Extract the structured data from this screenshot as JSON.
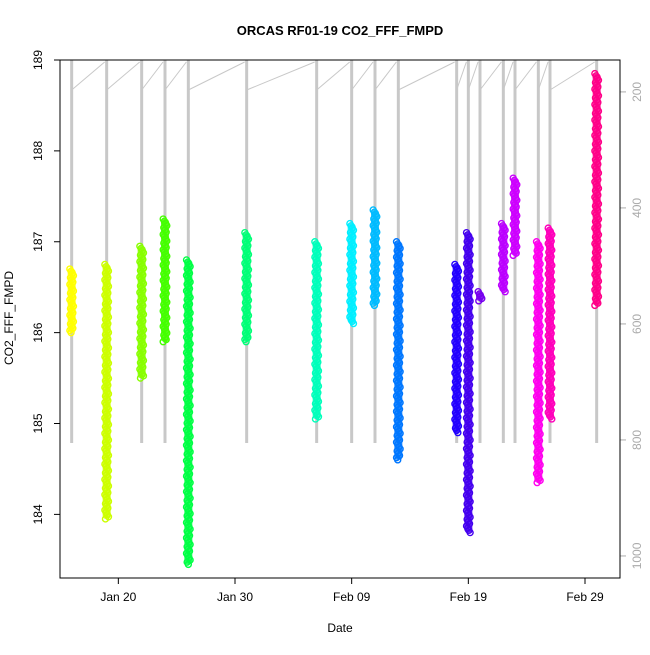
{
  "chart_data": {
    "type": "scatter",
    "title": "ORCAS RF01-19 CO2_FFF_FMPD",
    "xlabel": "Date",
    "ylabel": "CO2_FFF_FMPD",
    "xlim": [
      "2016-01-15",
      "2016-03-03"
    ],
    "ylim": [
      183.3,
      189.0
    ],
    "x_ticks": [
      {
        "date": "2016-01-20",
        "label": "Jan 20"
      },
      {
        "date": "2016-01-30",
        "label": "Jan 30"
      },
      {
        "date": "2016-02-09",
        "label": "Feb 09"
      },
      {
        "date": "2016-02-19",
        "label": "Feb 19"
      },
      {
        "date": "2016-02-29",
        "label": "Feb 29"
      }
    ],
    "y_ticks": [
      184,
      185,
      186,
      187,
      188,
      189
    ],
    "y2_ticks": [
      200,
      400,
      600,
      800,
      1000
    ],
    "y2lim": [
      1038,
      145
    ],
    "pressure_trace_color": "#c8c8c8",
    "series": [
      {
        "date": "2016-01-16",
        "color": "#ffff00",
        "y_min": 186.0,
        "y_max": 186.7
      },
      {
        "date": "2016-01-19",
        "color": "#ccff00",
        "y_min": 183.95,
        "y_max": 186.75
      },
      {
        "date": "2016-01-22",
        "color": "#88ff00",
        "y_min": 185.5,
        "y_max": 186.95
      },
      {
        "date": "2016-01-24",
        "color": "#44ff00",
        "y_min": 185.9,
        "y_max": 187.25
      },
      {
        "date": "2016-01-26",
        "color": "#00ff44",
        "y_min": 183.45,
        "y_max": 186.8
      },
      {
        "date": "2016-01-31",
        "color": "#00ff77",
        "y_min": 185.9,
        "y_max": 187.1
      },
      {
        "date": "2016-02-06",
        "color": "#00ffbb",
        "y_min": 185.05,
        "y_max": 187.0
      },
      {
        "date": "2016-02-09",
        "color": "#00eeff",
        "y_min": 186.1,
        "y_max": 187.2
      },
      {
        "date": "2016-02-11",
        "color": "#00bbff",
        "y_min": 186.3,
        "y_max": 187.35
      },
      {
        "date": "2016-02-13",
        "color": "#0077ff",
        "y_min": 184.6,
        "y_max": 187.0
      },
      {
        "date": "2016-02-18",
        "color": "#2200ff",
        "y_min": 184.9,
        "y_max": 186.75
      },
      {
        "date": "2016-02-19",
        "color": "#4400ee",
        "y_min": 183.8,
        "y_max": 187.1
      },
      {
        "date": "2016-02-20",
        "color": "#7700ee",
        "y_min": 186.35,
        "y_max": 186.45
      },
      {
        "date": "2016-02-22",
        "color": "#bb00ff",
        "y_min": 186.45,
        "y_max": 187.2
      },
      {
        "date": "2016-02-23",
        "color": "#cc00ff",
        "y_min": 186.85,
        "y_max": 187.7
      },
      {
        "date": "2016-02-25",
        "color": "#ff00ee",
        "y_min": 184.35,
        "y_max": 187.0
      },
      {
        "date": "2016-02-26",
        "color": "#ff00bb",
        "y_min": 185.05,
        "y_max": 187.15
      },
      {
        "date": "2016-03-01",
        "color": "#ff0088",
        "y_min": 186.3,
        "y_max": 188.85
      }
    ]
  }
}
